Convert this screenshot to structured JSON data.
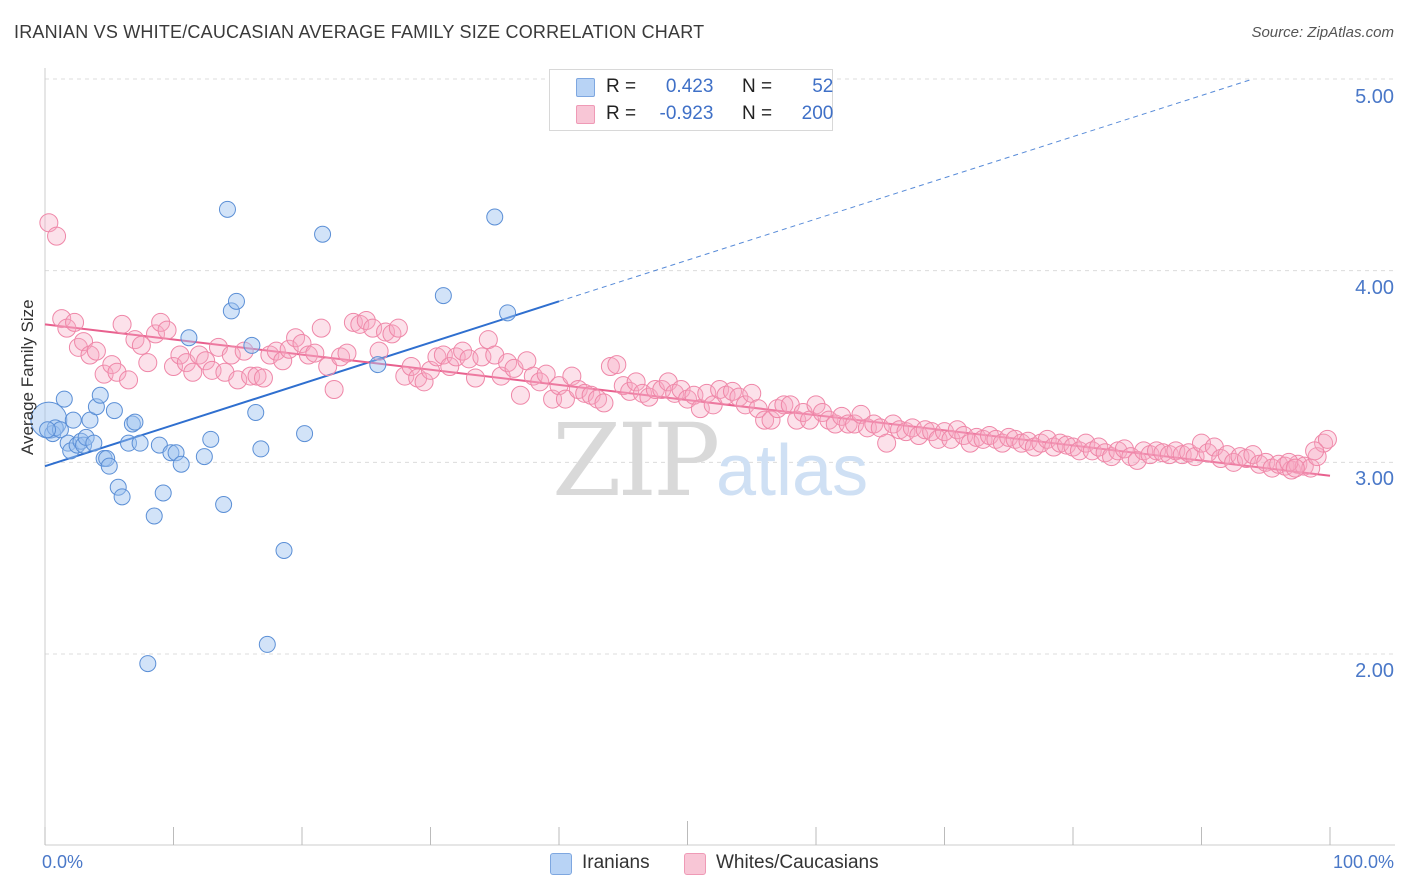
{
  "title": "IRANIAN VS WHITE/CAUCASIAN AVERAGE FAMILY SIZE CORRELATION CHART",
  "source": "Source: ZipAtlas.com",
  "watermark": {
    "zip": "ZIP",
    "atlas": "atlas"
  },
  "legend": {
    "rows": [
      {
        "r_label": "R =",
        "r_value": "0.423",
        "n_label": "N =",
        "n_value": "52",
        "color": "#a9c7ef"
      },
      {
        "r_label": "R =",
        "r_value": "-0.923",
        "n_label": "N =",
        "n_value": "200",
        "color": "#f7b6ca"
      }
    ]
  },
  "bottom_legend": [
    {
      "label": "Iranians",
      "color": "#b8d3f5"
    },
    {
      "label": "Whites/Caucasians",
      "color": "#f8c6d6"
    }
  ],
  "colors": {
    "blue_fill": "rgba(155,193,240,0.45)",
    "blue_stroke": "#5b8fd6",
    "blue_line": "#2f6fcf",
    "pink_fill": "rgba(246,170,195,0.35)",
    "pink_stroke": "#ef87a8",
    "pink_line": "#e8608e",
    "grid": "#dcdcdc",
    "axis_text": "#4a78c8"
  },
  "chart_data": {
    "type": "scatter",
    "title": "IRANIAN VS WHITE/CAUCASIAN AVERAGE FAMILY SIZE CORRELATION CHART",
    "xlabel": "",
    "ylabel": "Average Family Size",
    "xlim": [
      0,
      100
    ],
    "ylim": [
      1.0,
      5.2
    ],
    "x_tick_labels": [
      "0.0%",
      "100.0%"
    ],
    "y_ticks": [
      2.0,
      3.0,
      4.0,
      5.0
    ],
    "y_tick_labels": [
      "2.00",
      "3.00",
      "4.00",
      "5.00"
    ],
    "grid": true,
    "legend_position": "top-center",
    "series": [
      {
        "name": "Iranians",
        "r": 0.423,
        "n": 52,
        "trend": {
          "x0": 0,
          "y0": 2.98,
          "x1": 40,
          "y1": 3.84,
          "dashed_to_x": 94,
          "dashed_to_y": 5.0
        },
        "points": [
          [
            0.3,
            3.22
          ],
          [
            0.6,
            3.15
          ],
          [
            0.8,
            3.18
          ],
          [
            1.2,
            3.17
          ],
          [
            1.5,
            3.33
          ],
          [
            1.8,
            3.1
          ],
          [
            2.0,
            3.06
          ],
          [
            2.2,
            3.22
          ],
          [
            2.5,
            3.09
          ],
          [
            2.8,
            3.11
          ],
          [
            3.0,
            3.09
          ],
          [
            3.2,
            3.13
          ],
          [
            3.5,
            3.22
          ],
          [
            3.8,
            3.1
          ],
          [
            4.0,
            3.29
          ],
          [
            4.3,
            3.35
          ],
          [
            4.6,
            3.02
          ],
          [
            4.8,
            3.02
          ],
          [
            5.0,
            2.98
          ],
          [
            5.4,
            3.27
          ],
          [
            5.7,
            2.87
          ],
          [
            6.0,
            2.82
          ],
          [
            6.5,
            3.1
          ],
          [
            6.8,
            3.2
          ],
          [
            7.0,
            3.21
          ],
          [
            7.4,
            3.1
          ],
          [
            8.0,
            1.95
          ],
          [
            8.5,
            2.72
          ],
          [
            8.9,
            3.09
          ],
          [
            9.2,
            2.84
          ],
          [
            9.8,
            3.05
          ],
          [
            10.2,
            3.05
          ],
          [
            10.6,
            2.99
          ],
          [
            11.2,
            3.65
          ],
          [
            12.4,
            3.03
          ],
          [
            12.9,
            3.12
          ],
          [
            13.9,
            2.78
          ],
          [
            14.2,
            4.32
          ],
          [
            14.5,
            3.79
          ],
          [
            14.9,
            3.84
          ],
          [
            16.1,
            3.61
          ],
          [
            16.4,
            3.26
          ],
          [
            16.8,
            3.07
          ],
          [
            17.3,
            2.05
          ],
          [
            18.6,
            2.54
          ],
          [
            20.2,
            3.15
          ],
          [
            21.6,
            4.19
          ],
          [
            25.9,
            3.51
          ],
          [
            31.0,
            3.87
          ],
          [
            35.0,
            4.28
          ],
          [
            36.0,
            3.78
          ],
          [
            0.2,
            3.17
          ]
        ]
      },
      {
        "name": "Whites/Caucasians",
        "r": -0.923,
        "n": 200,
        "trend": {
          "x0": 0,
          "y0": 3.72,
          "x1": 100,
          "y1": 2.93
        },
        "points": [
          [
            0.3,
            4.25
          ],
          [
            0.9,
            4.18
          ],
          [
            1.3,
            3.75
          ],
          [
            1.7,
            3.7
          ],
          [
            2.3,
            3.73
          ],
          [
            2.6,
            3.6
          ],
          [
            3.0,
            3.63
          ],
          [
            3.5,
            3.56
          ],
          [
            4.0,
            3.58
          ],
          [
            4.6,
            3.46
          ],
          [
            5.2,
            3.51
          ],
          [
            5.6,
            3.47
          ],
          [
            6.0,
            3.72
          ],
          [
            6.5,
            3.43
          ],
          [
            7.0,
            3.64
          ],
          [
            7.5,
            3.61
          ],
          [
            8.0,
            3.52
          ],
          [
            8.6,
            3.67
          ],
          [
            9.0,
            3.73
          ],
          [
            9.5,
            3.69
          ],
          [
            10.0,
            3.5
          ],
          [
            10.5,
            3.56
          ],
          [
            11.0,
            3.52
          ],
          [
            11.5,
            3.47
          ],
          [
            12.0,
            3.56
          ],
          [
            12.5,
            3.53
          ],
          [
            13.0,
            3.48
          ],
          [
            13.5,
            3.6
          ],
          [
            14.0,
            3.47
          ],
          [
            14.5,
            3.56
          ],
          [
            15.0,
            3.43
          ],
          [
            15.5,
            3.58
          ],
          [
            16.0,
            3.45
          ],
          [
            16.5,
            3.45
          ],
          [
            17.0,
            3.44
          ],
          [
            17.5,
            3.56
          ],
          [
            18.0,
            3.58
          ],
          [
            18.5,
            3.53
          ],
          [
            19.0,
            3.59
          ],
          [
            19.5,
            3.65
          ],
          [
            20.0,
            3.62
          ],
          [
            20.5,
            3.56
          ],
          [
            21.0,
            3.57
          ],
          [
            21.5,
            3.7
          ],
          [
            22.0,
            3.5
          ],
          [
            22.5,
            3.38
          ],
          [
            23.0,
            3.55
          ],
          [
            23.5,
            3.57
          ],
          [
            24.0,
            3.73
          ],
          [
            24.5,
            3.72
          ],
          [
            25.0,
            3.74
          ],
          [
            25.5,
            3.7
          ],
          [
            26.0,
            3.58
          ],
          [
            26.5,
            3.68
          ],
          [
            27.0,
            3.67
          ],
          [
            27.5,
            3.7
          ],
          [
            28.0,
            3.45
          ],
          [
            28.5,
            3.5
          ],
          [
            29.0,
            3.44
          ],
          [
            29.5,
            3.42
          ],
          [
            30.0,
            3.48
          ],
          [
            30.5,
            3.55
          ],
          [
            31.0,
            3.56
          ],
          [
            31.5,
            3.5
          ],
          [
            32.0,
            3.55
          ],
          [
            32.5,
            3.58
          ],
          [
            33.0,
            3.54
          ],
          [
            33.5,
            3.44
          ],
          [
            34.0,
            3.55
          ],
          [
            34.5,
            3.64
          ],
          [
            35.0,
            3.56
          ],
          [
            35.5,
            3.45
          ],
          [
            36.0,
            3.52
          ],
          [
            36.5,
            3.49
          ],
          [
            37.0,
            3.35
          ],
          [
            37.5,
            3.53
          ],
          [
            38.0,
            3.45
          ],
          [
            38.5,
            3.42
          ],
          [
            39.0,
            3.46
          ],
          [
            39.5,
            3.33
          ],
          [
            40.0,
            3.4
          ],
          [
            40.5,
            3.33
          ],
          [
            41.0,
            3.45
          ],
          [
            41.5,
            3.38
          ],
          [
            42.0,
            3.36
          ],
          [
            42.5,
            3.35
          ],
          [
            43.0,
            3.33
          ],
          [
            43.5,
            3.31
          ],
          [
            44.0,
            3.5
          ],
          [
            44.5,
            3.51
          ],
          [
            45.0,
            3.4
          ],
          [
            45.5,
            3.37
          ],
          [
            46.0,
            3.42
          ],
          [
            46.5,
            3.36
          ],
          [
            47.0,
            3.34
          ],
          [
            47.5,
            3.38
          ],
          [
            48.0,
            3.38
          ],
          [
            48.5,
            3.42
          ],
          [
            49.0,
            3.36
          ],
          [
            49.5,
            3.38
          ],
          [
            50.0,
            3.33
          ],
          [
            50.5,
            3.35
          ],
          [
            51.0,
            3.28
          ],
          [
            51.5,
            3.36
          ],
          [
            52.0,
            3.3
          ],
          [
            52.5,
            3.38
          ],
          [
            53.0,
            3.35
          ],
          [
            53.5,
            3.37
          ],
          [
            54.0,
            3.34
          ],
          [
            54.5,
            3.3
          ],
          [
            55.0,
            3.36
          ],
          [
            55.5,
            3.28
          ],
          [
            56.0,
            3.22
          ],
          [
            56.5,
            3.22
          ],
          [
            57.0,
            3.28
          ],
          [
            57.5,
            3.3
          ],
          [
            58.0,
            3.3
          ],
          [
            58.5,
            3.22
          ],
          [
            59.0,
            3.26
          ],
          [
            59.5,
            3.22
          ],
          [
            60.0,
            3.3
          ],
          [
            60.5,
            3.26
          ],
          [
            61.0,
            3.22
          ],
          [
            61.5,
            3.2
          ],
          [
            62.0,
            3.24
          ],
          [
            62.5,
            3.2
          ],
          [
            63.0,
            3.2
          ],
          [
            63.5,
            3.25
          ],
          [
            64.0,
            3.18
          ],
          [
            64.5,
            3.2
          ],
          [
            65.0,
            3.18
          ],
          [
            65.5,
            3.1
          ],
          [
            66.0,
            3.2
          ],
          [
            66.5,
            3.17
          ],
          [
            67.0,
            3.16
          ],
          [
            67.5,
            3.18
          ],
          [
            68.0,
            3.14
          ],
          [
            68.5,
            3.17
          ],
          [
            69.0,
            3.16
          ],
          [
            69.5,
            3.12
          ],
          [
            70.0,
            3.16
          ],
          [
            70.5,
            3.12
          ],
          [
            71.0,
            3.17
          ],
          [
            71.5,
            3.14
          ],
          [
            72.0,
            3.1
          ],
          [
            72.5,
            3.13
          ],
          [
            73.0,
            3.12
          ],
          [
            73.5,
            3.14
          ],
          [
            74.0,
            3.12
          ],
          [
            74.5,
            3.1
          ],
          [
            75.0,
            3.13
          ],
          [
            75.5,
            3.12
          ],
          [
            76.0,
            3.1
          ],
          [
            76.5,
            3.11
          ],
          [
            77.0,
            3.08
          ],
          [
            77.5,
            3.1
          ],
          [
            78.0,
            3.12
          ],
          [
            78.5,
            3.08
          ],
          [
            79.0,
            3.1
          ],
          [
            79.5,
            3.09
          ],
          [
            80.0,
            3.08
          ],
          [
            80.5,
            3.06
          ],
          [
            81.0,
            3.1
          ],
          [
            81.5,
            3.06
          ],
          [
            82.0,
            3.08
          ],
          [
            82.5,
            3.05
          ],
          [
            83.0,
            3.03
          ],
          [
            83.5,
            3.06
          ],
          [
            84.0,
            3.07
          ],
          [
            84.5,
            3.03
          ],
          [
            85.0,
            3.01
          ],
          [
            85.5,
            3.06
          ],
          [
            86.0,
            3.04
          ],
          [
            86.5,
            3.06
          ],
          [
            87.0,
            3.05
          ],
          [
            87.5,
            3.04
          ],
          [
            88.0,
            3.06
          ],
          [
            88.5,
            3.04
          ],
          [
            89.0,
            3.05
          ],
          [
            89.5,
            3.03
          ],
          [
            90.0,
            3.1
          ],
          [
            90.5,
            3.05
          ],
          [
            91.0,
            3.08
          ],
          [
            91.5,
            3.02
          ],
          [
            92.0,
            3.04
          ],
          [
            92.5,
            3.0
          ],
          [
            93.0,
            3.03
          ],
          [
            93.5,
            3.02
          ],
          [
            94.0,
            3.04
          ],
          [
            94.5,
            2.99
          ],
          [
            95.0,
            3.0
          ],
          [
            95.5,
            2.97
          ],
          [
            96.0,
            2.99
          ],
          [
            96.5,
            2.98
          ],
          [
            97.0,
            2.96
          ],
          [
            97.5,
            2.99
          ],
          [
            98.0,
            2.98
          ],
          [
            98.5,
            2.97
          ],
          [
            99.0,
            3.03
          ],
          [
            99.5,
            3.1
          ],
          [
            99.8,
            3.12
          ],
          [
            96.8,
            3.0
          ],
          [
            97.3,
            2.97
          ],
          [
            98.8,
            3.06
          ]
        ]
      }
    ]
  }
}
